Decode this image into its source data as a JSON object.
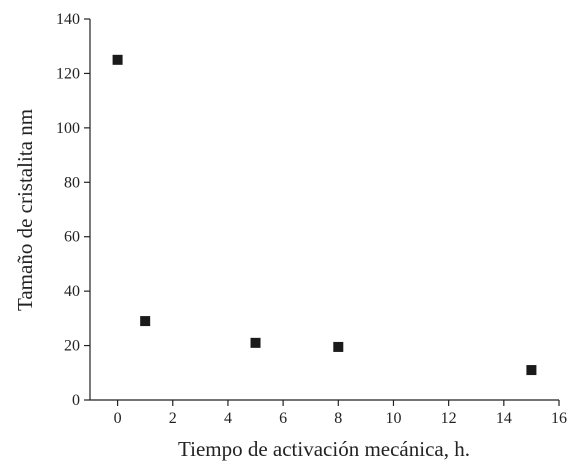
{
  "chart_data": {
    "type": "scatter",
    "x_label": "Tiempo de activación mecánica, h.",
    "y_label": "Tamaño de cristalita nm",
    "series": [
      {
        "color": "#1a1a1a",
        "x": [
          0,
          1,
          5,
          8,
          15
        ],
        "values": [
          125,
          29,
          21,
          19.5,
          11
        ]
      }
    ],
    "xlim": [
      -1,
      16
    ],
    "xticks": [
      0,
      2,
      4,
      6,
      8,
      10,
      12,
      14,
      16
    ],
    "ylim": [
      0,
      140
    ],
    "yticks": [
      0,
      20,
      40,
      60,
      80,
      100,
      120,
      140
    ],
    "grid": false
  }
}
